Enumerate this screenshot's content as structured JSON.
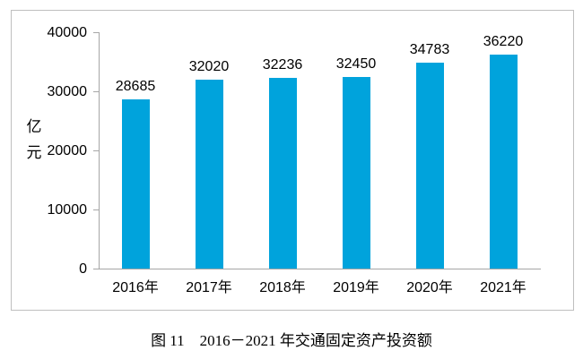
{
  "figure": {
    "caption": "图 11　2016－2021 年交通固定资产投资额"
  },
  "chart_data": {
    "type": "bar",
    "categories": [
      "2016年",
      "2017年",
      "2018年",
      "2019年",
      "2020年",
      "2021年"
    ],
    "values": [
      28685,
      32020,
      32236,
      32450,
      34783,
      36220
    ],
    "data_labels": [
      "28685",
      "32020",
      "32236",
      "32450",
      "34783",
      "36220"
    ],
    "title": "",
    "xlabel": "",
    "ylabel": "亿元",
    "ylim": [
      0,
      40000
    ],
    "yticks": [
      0,
      10000,
      20000,
      30000,
      40000
    ],
    "ytick_labels": [
      "0",
      "10000",
      "20000",
      "30000",
      "40000"
    ],
    "grid": false,
    "legend": false,
    "colors": {
      "bar": "#00a3dc",
      "axis": "#a6a6a6",
      "border": "#bfbfbf",
      "text": "#000000"
    }
  }
}
